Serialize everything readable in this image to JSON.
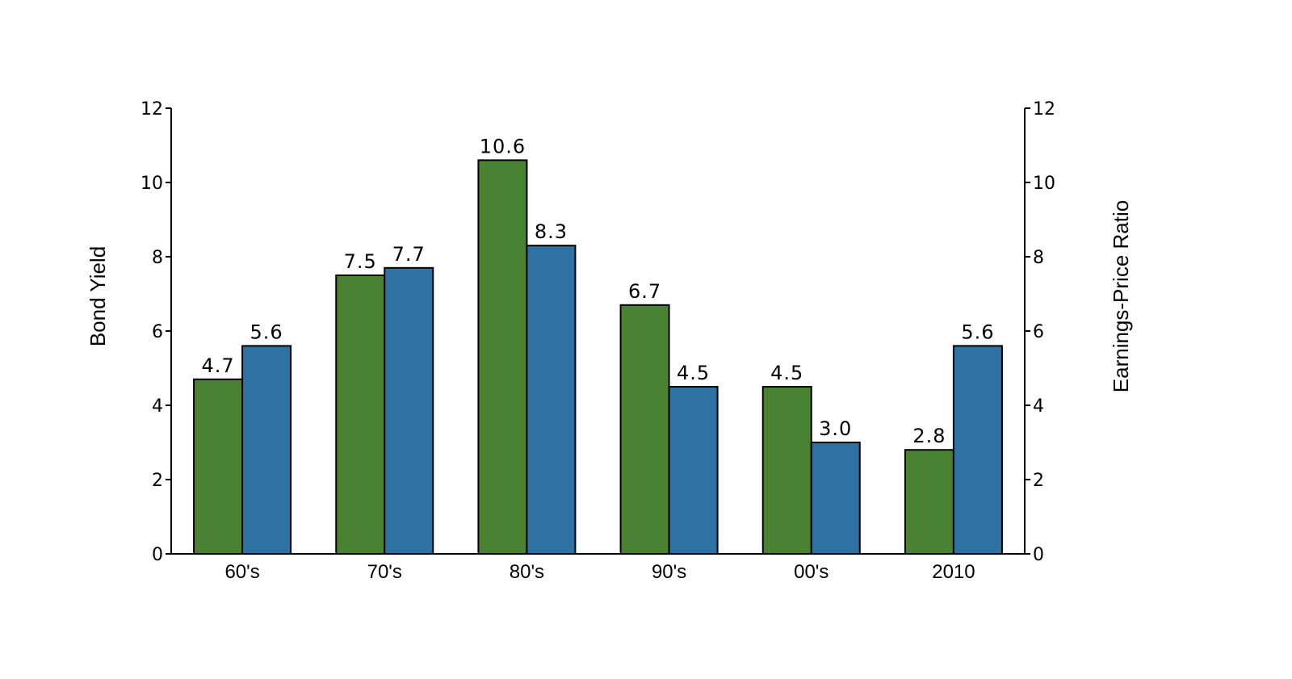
{
  "chart_data": {
    "type": "bar",
    "categories": [
      "60's",
      "70's",
      "80's",
      "90's",
      "00's",
      "2010"
    ],
    "series": [
      {
        "values": [
          4.7,
          7.5,
          10.6,
          6.7,
          4.5,
          2.8
        ],
        "color": "#4a8234",
        "axis": "left"
      },
      {
        "values": [
          5.6,
          7.7,
          8.3,
          4.5,
          3.0,
          5.6
        ],
        "color": "#2e72a4",
        "axis": "right"
      }
    ],
    "value_labels": [
      [
        "4.7",
        "7.5",
        "10.6",
        "6.7",
        "4.5",
        "2.8"
      ],
      [
        "5.6",
        "7.7",
        "8.3",
        "4.5",
        "3.0",
        "5.6"
      ]
    ],
    "ylabel": "Bond Yield",
    "ylabel_right": "Earnings-Price Ratio",
    "ylim": [
      0,
      12
    ],
    "ylim_right": [
      0,
      12
    ],
    "yticks": [
      "0",
      "2",
      "4",
      "6",
      "8",
      "10",
      "12"
    ],
    "grid": false
  }
}
